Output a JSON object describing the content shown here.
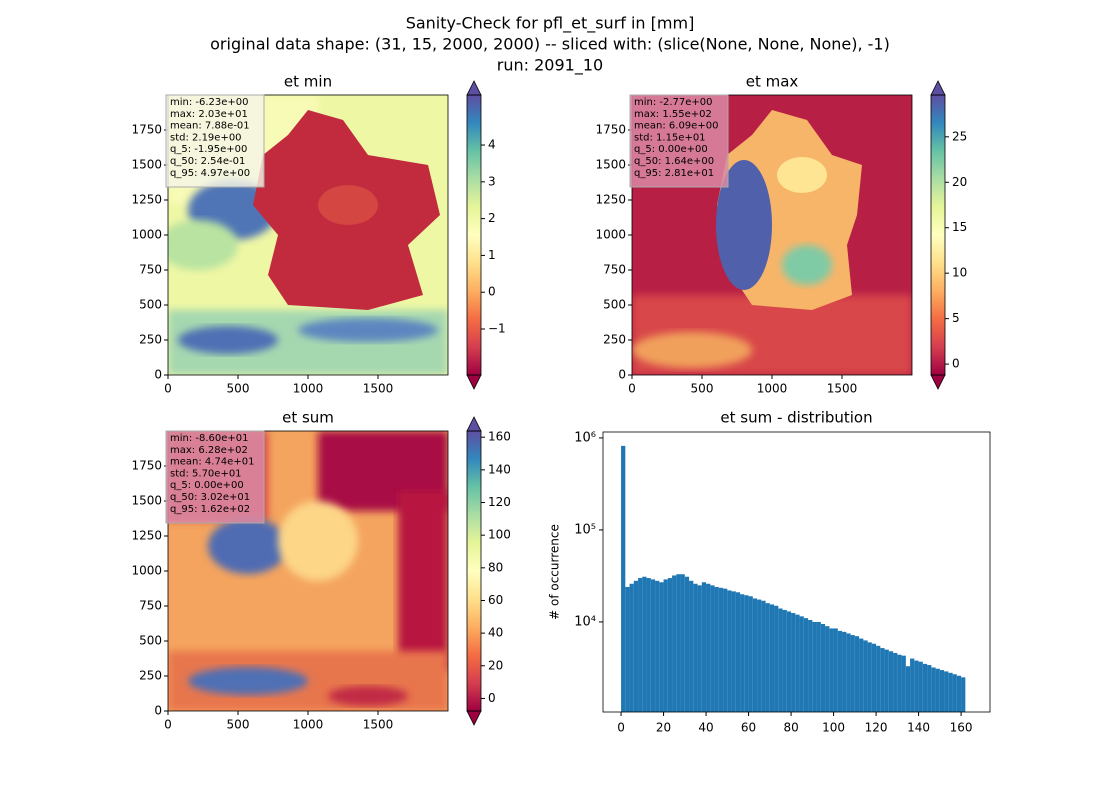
{
  "figure_title": [
    "Sanity-Check for pfl_et_surf in [mm]",
    "original data shape: (31, 15, 2000, 2000) -- sliced with: (slice(None, None, None), -1)",
    "run: 2091_10"
  ],
  "chart_data": [
    {
      "type": "heatmap",
      "title": "et min",
      "xlim": [
        0,
        2000
      ],
      "ylim": [
        0,
        2000
      ],
      "xticks": [
        0,
        500,
        1000,
        1500
      ],
      "yticks": [
        0,
        250,
        500,
        750,
        1000,
        1250,
        1500,
        1750
      ],
      "colormap": "Spectral",
      "clim": [
        -2.25,
        5.36
      ],
      "cticks": [
        {
          "value": -1,
          "label": "−1"
        },
        0,
        1,
        2,
        3,
        4
      ],
      "stats": [
        "min: -6.23e+00",
        "max: 2.03e+01",
        "mean: 7.88e-01",
        "std: 2.19e+00",
        "q_5: -1.95e+00",
        "q_50: 2.54e-01",
        "q_95: 4.97e+00"
      ]
    },
    {
      "type": "heatmap",
      "title": "et max",
      "xlim": [
        0,
        2000
      ],
      "ylim": [
        0,
        2000
      ],
      "xticks": [
        0,
        500,
        1000,
        1500
      ],
      "yticks": [
        0,
        250,
        500,
        750,
        1000,
        1250,
        1500,
        1750
      ],
      "colormap": "Spectral",
      "clim": [
        -1.2,
        29.6
      ],
      "cticks": [
        0,
        5,
        10,
        15,
        20,
        25
      ],
      "stats": [
        "min: -2.77e+00",
        "max: 1.55e+02",
        "mean: 6.09e+00",
        "std: 1.15e+01",
        "q_5: 0.00e+00",
        "q_50: 1.64e+00",
        "q_95: 2.81e+01"
      ]
    },
    {
      "type": "heatmap",
      "title": "et sum",
      "xlim": [
        0,
        2000
      ],
      "ylim": [
        0,
        2000
      ],
      "xticks": [
        0,
        500,
        1000,
        1500
      ],
      "yticks": [
        0,
        250,
        500,
        750,
        1000,
        1250,
        1500,
        1750
      ],
      "colormap": "Spectral",
      "clim": [
        -7.7,
        163.8
      ],
      "cticks": [
        0,
        20,
        40,
        60,
        80,
        100,
        120,
        140,
        160
      ],
      "stats": [
        "min: -8.60e+01",
        "max: 6.28e+02",
        "mean: 4.74e+01",
        "std: 5.70e+01",
        "q_5: 0.00e+00",
        "q_50: 3.02e+01",
        "q_95: 1.62e+02"
      ]
    },
    {
      "type": "histogram",
      "title": "et sum - distribution",
      "y_label": "# of occurrence",
      "color": "#1f77b4",
      "log_y": true,
      "xlim": [
        -8.5,
        173.6
      ],
      "ylim": [
        1050,
        1160000
      ],
      "xticks": [
        0,
        20,
        40,
        60,
        80,
        100,
        120,
        140,
        160
      ],
      "yticks": [
        {
          "value": 10000,
          "label": "10⁴"
        },
        {
          "value": 100000,
          "label": "10⁵"
        },
        {
          "value": 1000000,
          "label": "10⁶"
        }
      ],
      "bins": [
        0,
        2,
        4,
        6,
        8,
        10,
        12,
        14,
        16,
        18,
        20,
        22,
        24,
        26,
        28,
        30,
        32,
        34,
        36,
        38,
        40,
        42,
        44,
        46,
        48,
        50,
        52,
        54,
        56,
        58,
        60,
        62,
        64,
        66,
        68,
        70,
        72,
        74,
        76,
        78,
        80,
        82,
        84,
        86,
        88,
        90,
        92,
        94,
        96,
        98,
        100,
        102,
        104,
        106,
        108,
        110,
        112,
        114,
        116,
        118,
        120,
        122,
        124,
        126,
        128,
        130,
        132,
        134,
        136,
        138,
        140,
        142,
        144,
        146,
        148,
        150,
        152,
        154,
        156,
        158,
        160,
        162
      ],
      "values": [
        820000,
        24000,
        26000,
        28000,
        30000,
        31000,
        30000,
        29000,
        28000,
        27000,
        29000,
        30000,
        32000,
        33000,
        33000,
        31000,
        28000,
        26000,
        25000,
        27000,
        26000,
        25000,
        24000,
        23500,
        23000,
        22000,
        21500,
        21000,
        20000,
        19500,
        19000,
        18000,
        17500,
        17000,
        16000,
        15500,
        15000,
        14000,
        13500,
        13000,
        12500,
        12000,
        11500,
        11000,
        10500,
        10000,
        10000,
        9500,
        9000,
        8500,
        8500,
        8000,
        7800,
        7500,
        7200,
        7000,
        6600,
        6300,
        6000,
        5800,
        5500,
        5200,
        5000,
        4800,
        4600,
        4400,
        4300,
        3300,
        4000,
        3800,
        3700,
        3500,
        3400,
        3200,
        3100,
        3000,
        2900,
        2800,
        2700,
        2600,
        2500
      ]
    }
  ]
}
